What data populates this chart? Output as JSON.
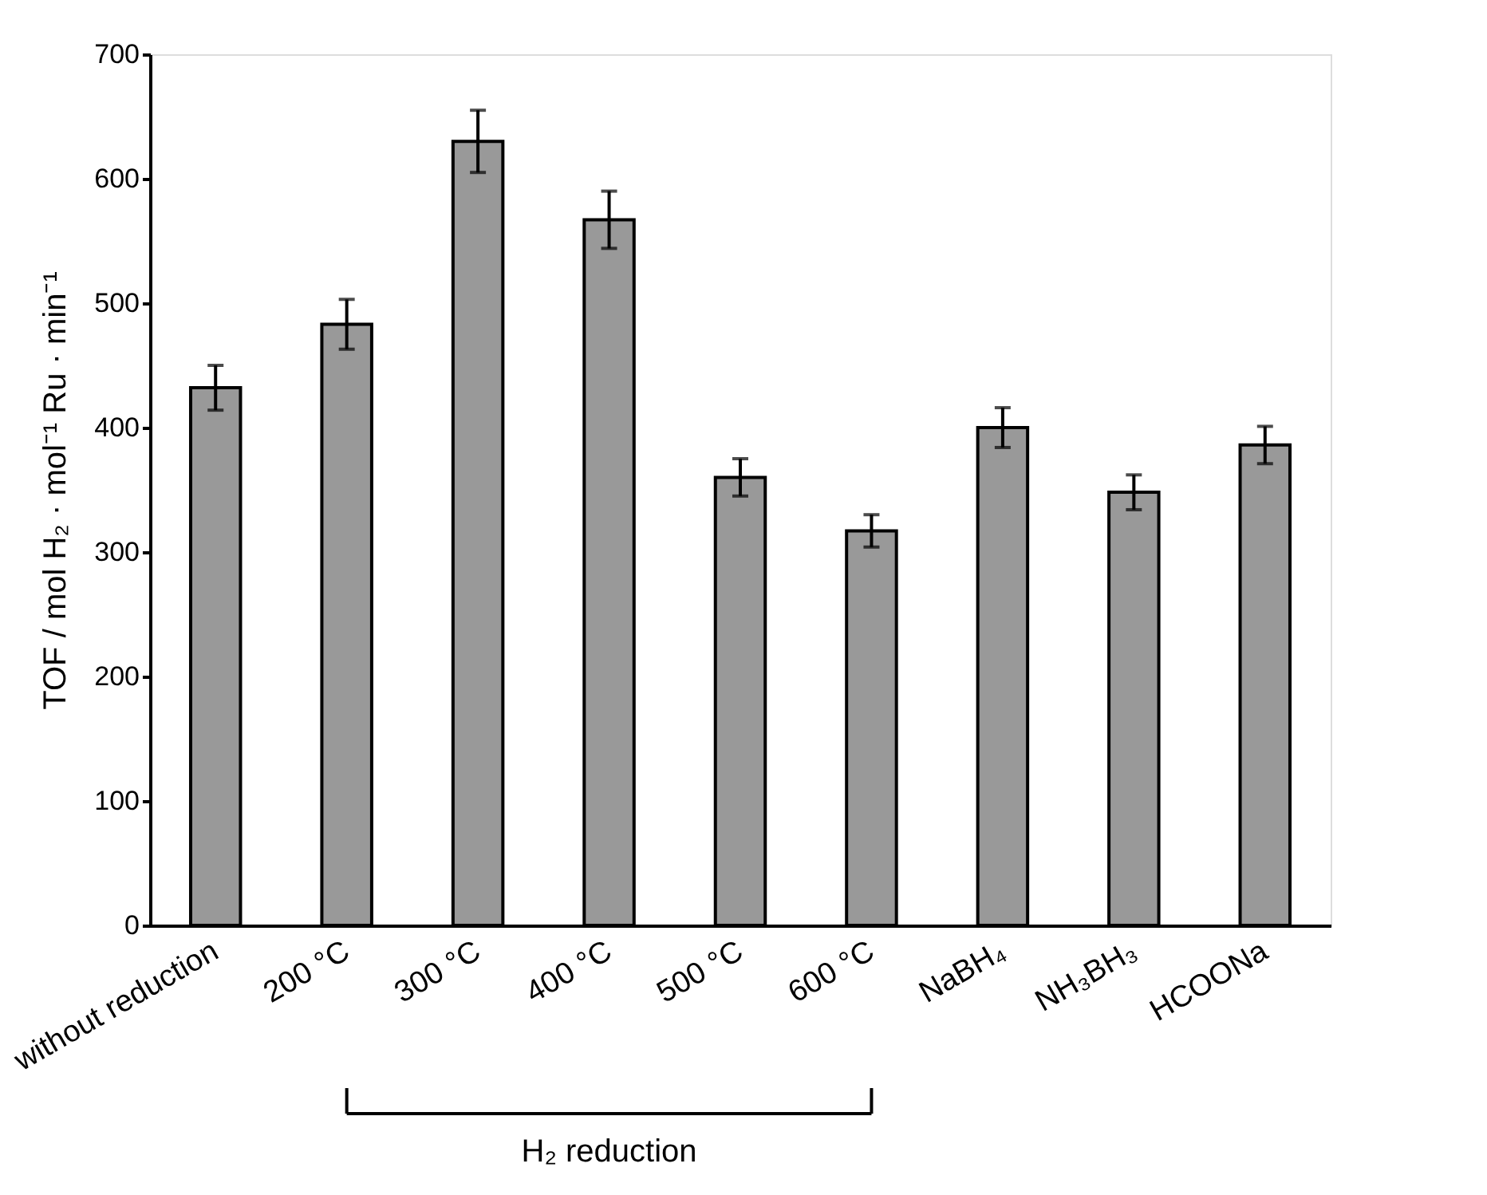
{
  "chart_data": {
    "type": "bar",
    "ylabel": "TOF / mol H₂ · mol⁻¹ Ru · min⁻¹",
    "categories": [
      "without reduction",
      "200 °C",
      "300 °C",
      "400 °C",
      "500 °C",
      "600 °C",
      "NaBH₄",
      "NH₃BH₃",
      "HCOONa"
    ],
    "values": [
      432,
      483,
      630,
      567,
      360,
      317,
      400,
      348,
      386
    ],
    "errors": [
      18,
      20,
      25,
      23,
      15,
      13,
      16,
      14,
      15
    ],
    "color": "#999999",
    "ylim": [
      0,
      700
    ],
    "yticks": [
      0,
      100,
      200,
      300,
      400,
      500,
      600,
      700
    ],
    "grid": false,
    "annotations": [
      "H₂ reduction"
    ]
  }
}
